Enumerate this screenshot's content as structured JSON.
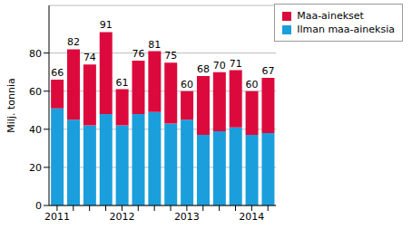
{
  "chart_data": {
    "type": "bar",
    "stacked": true,
    "ylabel": "Milj. tonnia",
    "categories": [
      "2011",
      null,
      null,
      null,
      "2012",
      null,
      null,
      null,
      "2013",
      null,
      null,
      null,
      "2014",
      null
    ],
    "series": [
      {
        "name": "Ilman maa-aineksia",
        "color": "#1a9fdc",
        "values": [
          51,
          45,
          42,
          48,
          42,
          48,
          49,
          43,
          45,
          37,
          39,
          41,
          37,
          38
        ]
      },
      {
        "name": "Maa-ainekset",
        "color": "#dc0a3c",
        "values": [
          15,
          37,
          32,
          43,
          19,
          28,
          32,
          32,
          15,
          31,
          31,
          30,
          23,
          29
        ]
      }
    ],
    "totals": [
      66,
      82,
      74,
      91,
      61,
      76,
      81,
      75,
      60,
      68,
      70,
      71,
      60,
      67
    ],
    "ylim": [
      0,
      105
    ],
    "yticks": [
      0,
      20,
      40,
      60,
      80
    ],
    "grid": true,
    "legend": "top-right"
  }
}
